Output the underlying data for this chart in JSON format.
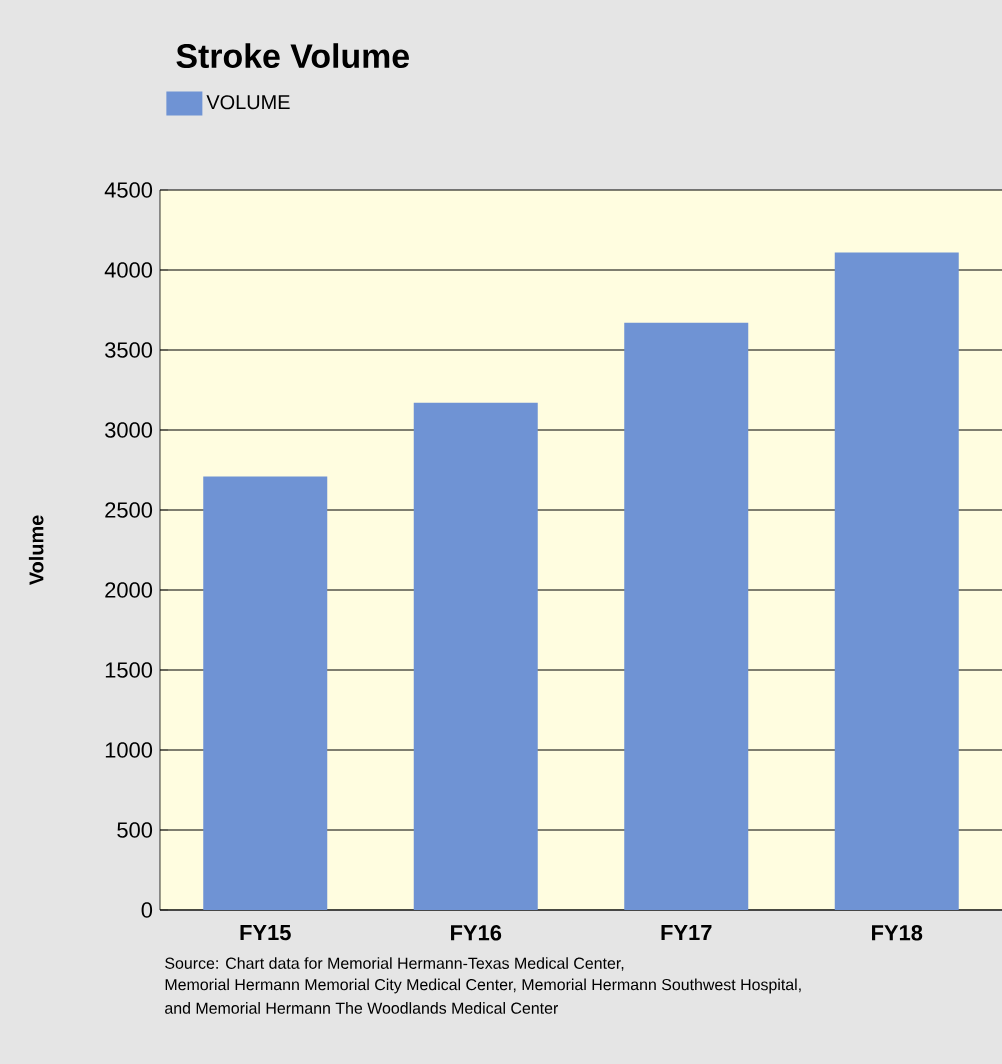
{
  "chart_data": {
    "type": "bar",
    "title": "Stroke Volume",
    "ylabel": "Volume",
    "categories": [
      "FY15",
      "FY16",
      "FY17",
      "FY18"
    ],
    "series": [
      {
        "name": "VOLUME",
        "color": "#6f93d4",
        "values": [
          2710,
          3170,
          3670,
          4110
        ]
      }
    ],
    "ylim": [
      0,
      4500
    ],
    "yticks": [
      0,
      500,
      1000,
      1500,
      2000,
      2500,
      3000,
      3500,
      4000,
      4500
    ],
    "grid": "y",
    "legend": "top left",
    "annotations": [
      "Source: Chart data for Memorial Hermann-Texas Medical Center,",
      "Memorial Hermann Memorial City Medical Center, Memorial Hermann Southwest Hospital,",
      "and Memorial Hermann The Woodlands Medical Center"
    ]
  }
}
